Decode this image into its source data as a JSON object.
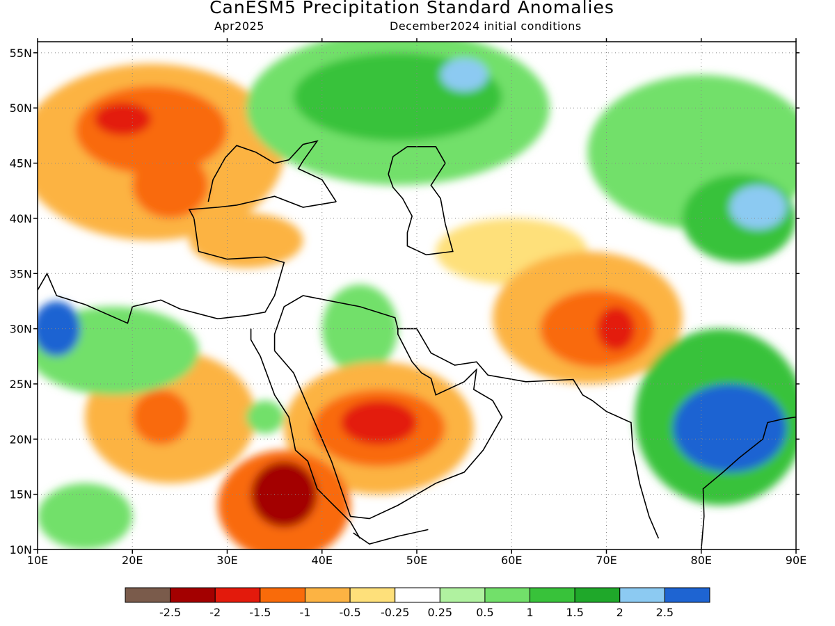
{
  "title": "CanESM5 Precipitation Standard Anomalies",
  "subtitle_left": "Apr2025",
  "subtitle_right": "December2024 initial conditions",
  "map": {
    "lon_range": [
      10,
      90
    ],
    "lat_range": [
      10,
      56
    ],
    "lon_ticks": [
      "10E",
      "20E",
      "30E",
      "40E",
      "50E",
      "60E",
      "70E",
      "80E",
      "90E"
    ],
    "lat_ticks": [
      "10N",
      "15N",
      "20N",
      "25N",
      "30N",
      "35N",
      "40N",
      "45N",
      "50N",
      "55N"
    ],
    "colors": {
      "dry_extreme": "#7a5b4b",
      "dry_2": "#a30000",
      "dry_15": "#e31a0c",
      "dry_1": "#f96b0a",
      "dry_05": "#fcb343",
      "dry_025": "#fee07a",
      "neutral": "#ffffff",
      "wet_025": "#b0f2a0",
      "wet_05": "#72e06a",
      "wet_1": "#38c23a",
      "wet_15": "#1fa82a",
      "wet_2": "#8ccaf2",
      "wet_25": "#1e64d2"
    },
    "regions": [
      {
        "name": "europe-dry",
        "color": "dry_05",
        "lon": 22,
        "lat": 46,
        "rx": 14,
        "ry": 8
      },
      {
        "name": "hungary-dry",
        "color": "dry_1",
        "lon": 22,
        "lat": 48,
        "rx": 8,
        "ry": 4
      },
      {
        "name": "hungary-core",
        "color": "dry_15",
        "lon": 19,
        "lat": 49,
        "rx": 3,
        "ry": 1.5
      },
      {
        "name": "balkans-dry",
        "color": "dry_1",
        "lon": 24,
        "lat": 43,
        "rx": 4,
        "ry": 3
      },
      {
        "name": "russia-wet",
        "color": "wet_05",
        "lon": 48,
        "lat": 50,
        "rx": 16,
        "ry": 7
      },
      {
        "name": "russia-wet-core",
        "color": "wet_1",
        "lon": 48,
        "lat": 51,
        "rx": 11,
        "ry": 4
      },
      {
        "name": "russia-blue",
        "color": "wet_2",
        "lon": 55,
        "lat": 53,
        "rx": 2.5,
        "ry": 1.5
      },
      {
        "name": "central-asia-wet",
        "color": "wet_05",
        "lon": 80,
        "lat": 46,
        "rx": 12,
        "ry": 7
      },
      {
        "name": "tianshan-wet",
        "color": "wet_1",
        "lon": 84,
        "lat": 40,
        "rx": 6,
        "ry": 4
      },
      {
        "name": "tianshan-blue",
        "color": "wet_2",
        "lon": 86,
        "lat": 41,
        "rx": 3,
        "ry": 2
      },
      {
        "name": "turkey-dry",
        "color": "dry_05",
        "lon": 32,
        "lat": 38,
        "rx": 6,
        "ry": 2.5
      },
      {
        "name": "iran-neutral-dry",
        "color": "dry_025",
        "lon": 60,
        "lat": 37,
        "rx": 8,
        "ry": 3
      },
      {
        "name": "afghan-dry",
        "color": "dry_05",
        "lon": 68,
        "lat": 31,
        "rx": 10,
        "ry": 6
      },
      {
        "name": "afghan-dry-core",
        "color": "dry_1",
        "lon": 69,
        "lat": 30,
        "rx": 6,
        "ry": 3.5
      },
      {
        "name": "pakistan-core",
        "color": "dry_15",
        "lon": 71,
        "lat": 30,
        "rx": 2,
        "ry": 2
      },
      {
        "name": "iraq-wet",
        "color": "wet_05",
        "lon": 44,
        "lat": 30,
        "rx": 4,
        "ry": 4
      },
      {
        "name": "arabia-dry",
        "color": "dry_05",
        "lon": 46,
        "lat": 21,
        "rx": 10,
        "ry": 6
      },
      {
        "name": "arabia-dry-core",
        "color": "dry_1",
        "lon": 46,
        "lat": 21,
        "rx": 7,
        "ry": 3.5
      },
      {
        "name": "arabia-core",
        "color": "dry_15",
        "lon": 46,
        "lat": 21.5,
        "rx": 4,
        "ry": 2
      },
      {
        "name": "sudan-dry",
        "color": "dry_05",
        "lon": 24,
        "lat": 22,
        "rx": 9,
        "ry": 6
      },
      {
        "name": "sudan-dry-core",
        "color": "dry_1",
        "lon": 23,
        "lat": 22,
        "rx": 3,
        "ry": 2.5
      },
      {
        "name": "ethiopia-dry",
        "color": "dry_1",
        "lon": 36,
        "lat": 14,
        "rx": 7,
        "ry": 5
      },
      {
        "name": "ethiopia-core",
        "color": "dry_2",
        "lon": 36,
        "lat": 15,
        "rx": 3.5,
        "ry": 3
      },
      {
        "name": "libya-wet",
        "color": "wet_05",
        "lon": 18,
        "lat": 28,
        "rx": 9,
        "ry": 4
      },
      {
        "name": "libya-blue",
        "color": "wet_25",
        "lon": 12,
        "lat": 30,
        "rx": 2.5,
        "ry": 2.5
      },
      {
        "name": "india-wet",
        "color": "wet_1",
        "lon": 82,
        "lat": 22,
        "rx": 9,
        "ry": 8
      },
      {
        "name": "india-blue",
        "color": "wet_25",
        "lon": 83,
        "lat": 21,
        "rx": 6,
        "ry": 4
      },
      {
        "name": "chad-wet",
        "color": "wet_05",
        "lon": 15,
        "lat": 13,
        "rx": 5,
        "ry": 3
      },
      {
        "name": "egypt-wet",
        "color": "wet_05",
        "lon": 34,
        "lat": 22,
        "rx": 2,
        "ry": 1.5
      }
    ]
  },
  "colorbar": {
    "labels": [
      "-2.5",
      "-2",
      "-1.5",
      "-1",
      "-0.5",
      "-0.25",
      "0.25",
      "0.5",
      "1",
      "1.5",
      "2",
      "2.5"
    ],
    "colors": [
      "#7a5b4b",
      "#a30000",
      "#e31a0c",
      "#f96b0a",
      "#fcb343",
      "#fee07a",
      "#ffffff",
      "#b0f2a0",
      "#72e06a",
      "#38c23a",
      "#1fa82a",
      "#8ccaf2",
      "#1e64d2"
    ]
  }
}
